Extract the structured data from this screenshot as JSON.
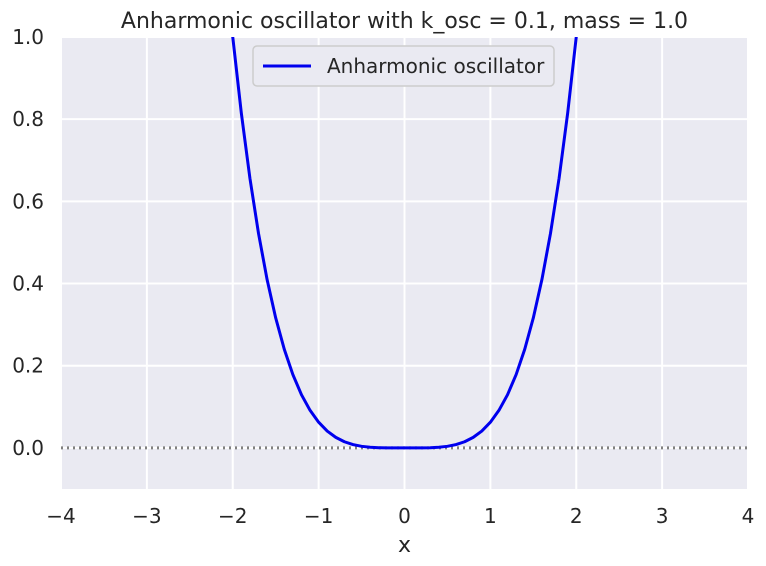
{
  "chart_data": {
    "type": "line",
    "title": "Anharmonic oscillator with k_osc = 0.1, mass = 1.0",
    "xlabel": "x",
    "ylabel": "",
    "xlim": [
      -4,
      4
    ],
    "ylim": [
      -0.1,
      1.0
    ],
    "grid": true,
    "legend_position": "top-center",
    "x_ticks": [
      -4,
      -3,
      -2,
      -1,
      0,
      1,
      2,
      3,
      4
    ],
    "x_tick_labels": [
      "−4",
      "−3",
      "−2",
      "−1",
      "0",
      "1",
      "2",
      "3",
      "4"
    ],
    "y_ticks": [
      0.0,
      0.2,
      0.4,
      0.6,
      0.8,
      1.0
    ],
    "y_tick_labels": [
      "0.0",
      "0.2",
      "0.4",
      "0.6",
      "0.8",
      "1.0"
    ],
    "reference_line": {
      "y": 0.0,
      "style": "dotted",
      "color": "#808080"
    },
    "series": [
      {
        "name": "Anharmonic oscillator",
        "color": "#0000ee",
        "x": [
          -2.1,
          -2.0,
          -1.9,
          -1.8,
          -1.7,
          -1.6,
          -1.5,
          -1.4,
          -1.3,
          -1.2,
          -1.1,
          -1.0,
          -0.9,
          -0.8,
          -0.7,
          -0.6,
          -0.5,
          -0.4,
          -0.3,
          -0.2,
          -0.1,
          0.0,
          0.1,
          0.2,
          0.3,
          0.4,
          0.5,
          0.6,
          0.7,
          0.8,
          0.9,
          1.0,
          1.1,
          1.2,
          1.3,
          1.4,
          1.5,
          1.6,
          1.7,
          1.8,
          1.9,
          2.0,
          2.1
        ],
        "y": [
          1.2155,
          1.0,
          0.8145,
          0.6561,
          0.522,
          0.4096,
          0.3164,
          0.2401,
          0.1785,
          0.1296,
          0.0915,
          0.0625,
          0.041,
          0.0256,
          0.015,
          0.0081,
          0.0039,
          0.0016,
          0.0005,
          0.0001,
          0.0,
          0.0,
          0.0,
          0.0001,
          0.0005,
          0.0016,
          0.0039,
          0.0081,
          0.015,
          0.0256,
          0.041,
          0.0625,
          0.0915,
          0.1296,
          0.1785,
          0.2401,
          0.3164,
          0.4096,
          0.522,
          0.6561,
          0.8145,
          1.0,
          1.2155
        ]
      }
    ]
  },
  "colors": {
    "plot_background": "#eaeaf2",
    "grid": "#ffffff",
    "legend_background": "#eaeaf2",
    "legend_border": "#cccccc"
  }
}
